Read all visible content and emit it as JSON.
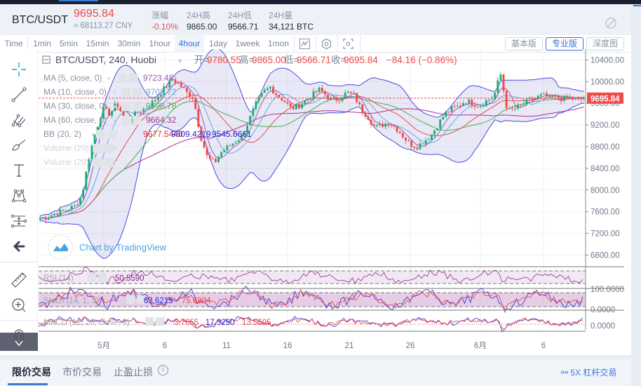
{
  "ticker": {
    "symbol": "BTC/USDT",
    "last_price": "9695.84",
    "cny_equiv": "≈ 68113.27 CNY",
    "stats": [
      {
        "label": "涨幅",
        "value": "-0.10%",
        "color": "red"
      },
      {
        "label": "24H高",
        "value": "9865.00",
        "color": "dark"
      },
      {
        "label": "24H低",
        "value": "9566.71",
        "color": "dark"
      },
      {
        "label": "24H量",
        "value": "34,121 BTC",
        "color": "dark"
      }
    ],
    "visibility_icon": "eye-slash-icon"
  },
  "toolbar": {
    "intervals": [
      "Time",
      "1min",
      "5min",
      "15min",
      "30min",
      "1hour",
      "4hour",
      "1day",
      "1week",
      "1mon"
    ],
    "active_interval": "4hour",
    "icons": [
      "indicator-icon",
      "settings-hexagon-icon",
      "fullscreen-icon"
    ],
    "versions": [
      {
        "label": "基本版",
        "active": false
      },
      {
        "label": "专业版",
        "active": true
      },
      {
        "label": "深度图",
        "active": false
      }
    ]
  },
  "left_tools": [
    "crosshair-icon",
    "trend-line-icon",
    "pitchfork-icon",
    "brush-icon",
    "text-icon",
    "pattern-icon",
    "fib-retracement-icon",
    "back-arrow-icon",
    "ruler-icon",
    "zoom-in-icon",
    "magnet-icon"
  ],
  "chart_legend": {
    "title": "BTC/USDT, 240, Huobi",
    "ohlc": [
      {
        "label": "开=",
        "value": "9780.55"
      },
      {
        "label": "高=",
        "value": "9865.00"
      },
      {
        "label": "低=",
        "value": "9566.71"
      },
      {
        "label": "收=",
        "value": "9695.84"
      }
    ],
    "change": "−84.16 (−0.86%)",
    "indicators": [
      {
        "name": "MA (5, close, 0)",
        "values": [
          "9723.48"
        ],
        "colors": [
          "#9b59b6"
        ]
      },
      {
        "name": "MA (10, close, 0)",
        "values": [
          "9708.72"
        ],
        "colors": [
          "#6fa8dc"
        ]
      },
      {
        "name": "MA (30, close, 0)",
        "values": [
          "9698.78"
        ],
        "colors": [
          "#4caf50"
        ]
      },
      {
        "name": "MA (60, close, 0)",
        "values": [
          "9664.32"
        ],
        "colors": [
          "#b0308f"
        ]
      },
      {
        "name": "BB (20, 2)",
        "values": [
          "9677.5440",
          "9809.4219",
          "9545.6661"
        ],
        "colors": [
          "#e83030",
          "#2b2bd6",
          "#2b2bd6"
        ]
      },
      {
        "name": "Volume (20)",
        "values": [],
        "colors": []
      },
      {
        "name": "Volume (20)",
        "values": [],
        "colors": []
      }
    ],
    "watermark": "Chart by TradingView"
  },
  "price_axis": {
    "ticks": [
      "10400.00",
      "10000.00",
      "9600.00",
      "9200.00",
      "8800.00",
      "8400.00",
      "8000.00",
      "7600.00",
      "7200.00",
      "6800.00"
    ],
    "current_label": "9695.84",
    "current_color": "#f04a4a"
  },
  "oscillators": {
    "rsi": {
      "name": "RSI (14)",
      "value": "50.5590"
    },
    "stoch": {
      "name": "Stoch (14, 1, 3)",
      "values": [
        "63.6215",
        "75.6904"
      ],
      "axis": [
        "100.0000",
        "0.0000"
      ]
    },
    "macd": {
      "name": "MACD (12, 26, close, 9)",
      "values": [
        "3.7655",
        "17.3250",
        "13.5595"
      ],
      "axis": [
        "0.0000"
      ]
    }
  },
  "time_axis": [
    "5月",
    "6",
    "11",
    "16",
    "21",
    "26",
    "6月",
    "6"
  ],
  "bottom_tabs": {
    "tabs": [
      "限价交易",
      "市价交易",
      "止盈止损"
    ],
    "active": 0,
    "leverage_link": "5X 杠杆交易"
  },
  "chart_data": {
    "type": "candlestick",
    "title": "BTC/USDT, 240, Huobi",
    "x_ticks": [
      "5月",
      "6",
      "11",
      "16",
      "21",
      "26",
      "6月",
      "6"
    ],
    "ylim": [
      6650,
      10600
    ],
    "close_path": [
      7480,
      7500,
      7560,
      7600,
      7650,
      7700,
      7900,
      8600,
      9100,
      9500,
      9400,
      9600,
      9350,
      9300,
      9450,
      9500,
      9600,
      9750,
      9900,
      10050,
      9950,
      9800,
      9700,
      9000,
      8600,
      8500,
      8700,
      8800,
      8900,
      9000,
      9300,
      9600,
      9800,
      9900,
      9750,
      9650,
      9500,
      9550,
      9650,
      9750,
      9850,
      9750,
      9650,
      9700,
      9800,
      9750,
      9500,
      9350,
      9150,
      9200,
      9250,
      9150,
      9000,
      8850,
      8800,
      8900,
      9000,
      9200,
      9400,
      9500,
      9550,
      9650,
      9600,
      9550,
      9650,
      9700,
      10150,
      9450,
      9500,
      9550,
      9650,
      9700,
      9750,
      9700,
      9720,
      9680,
      9700,
      9650,
      9695
    ]
  }
}
